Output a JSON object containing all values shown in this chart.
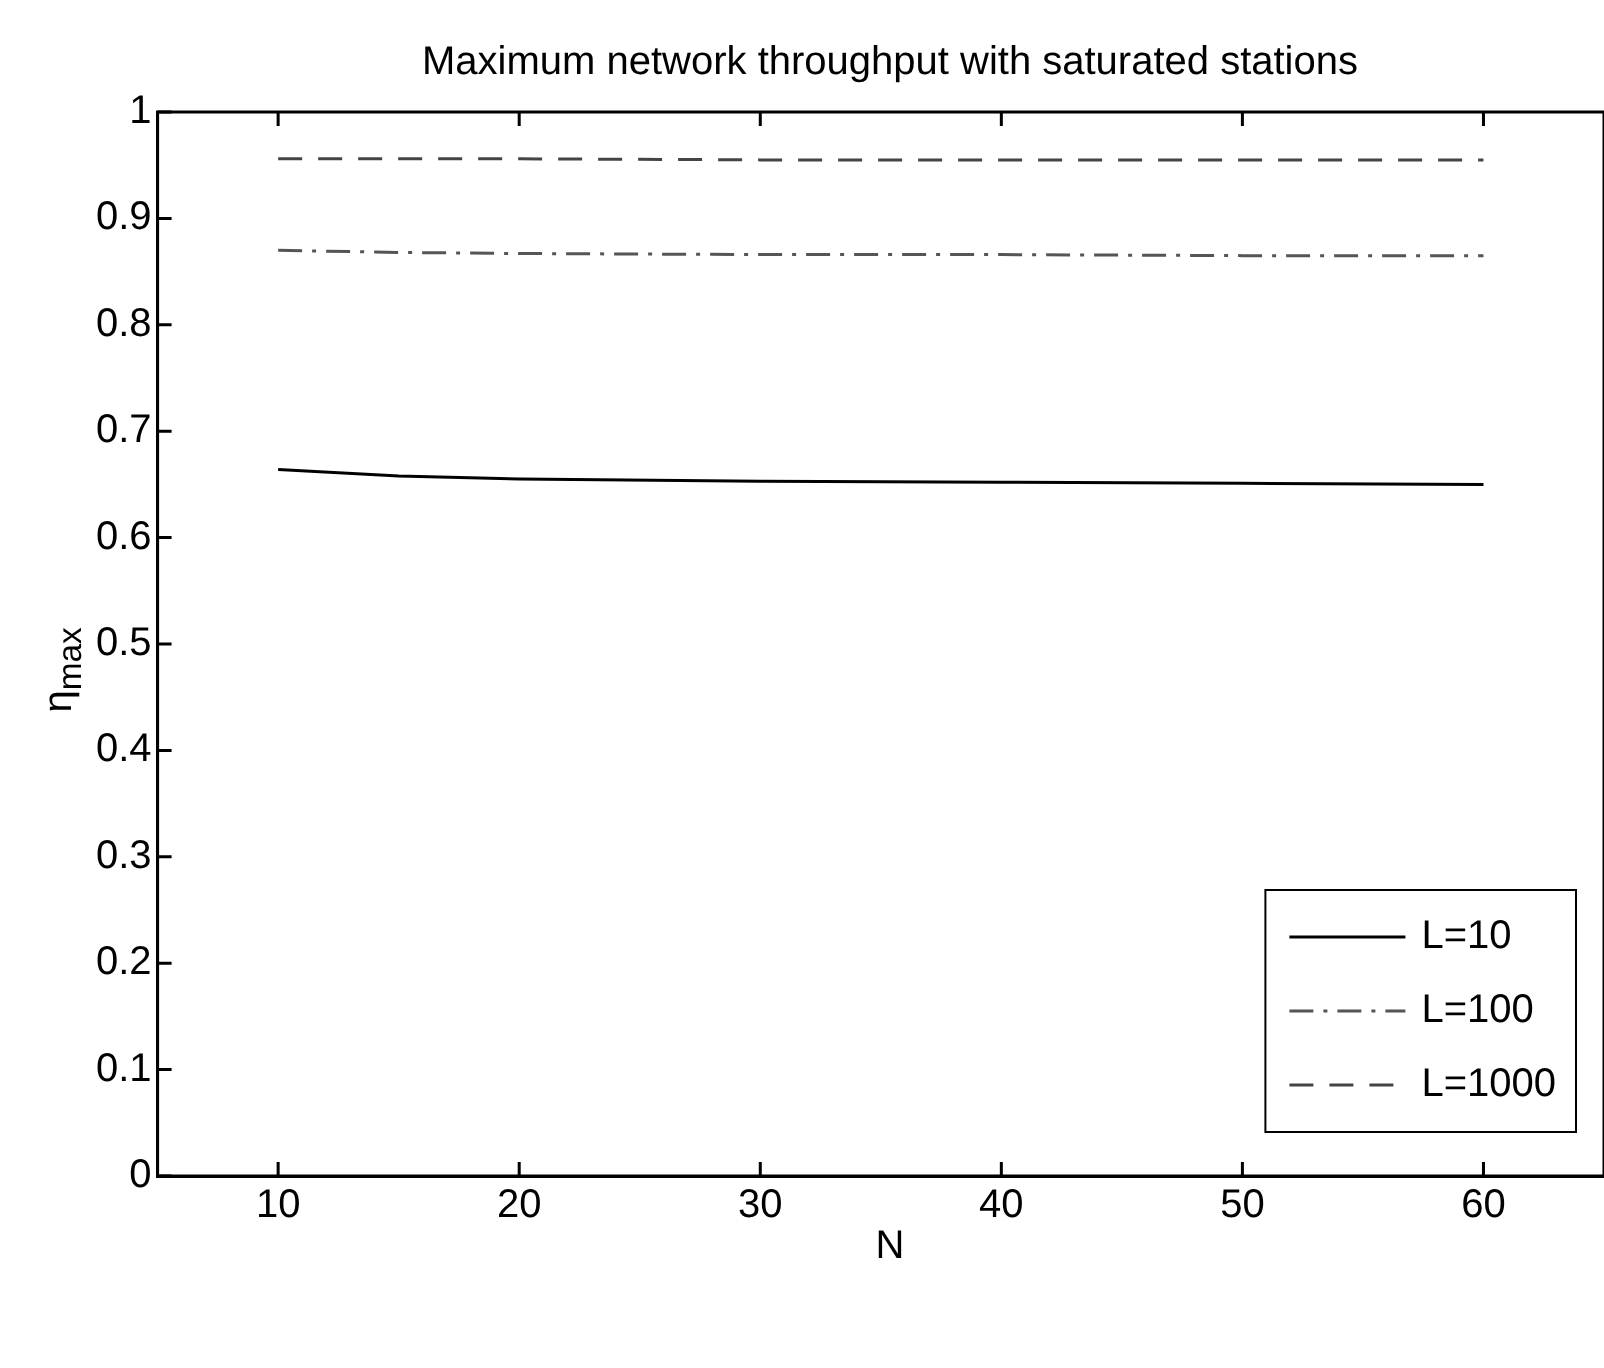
{
  "chart_data": {
    "type": "line",
    "title": "Maximum network throughput with saturated stations",
    "xlabel": "N",
    "ylabel": "η$_{max}$",
    "x": [
      10,
      15,
      20,
      30,
      40,
      50,
      60
    ],
    "series": [
      {
        "name": "L=10",
        "color": "#000000",
        "line_style": "solid",
        "values": [
          0.664,
          0.658,
          0.655,
          0.653,
          0.652,
          0.651,
          0.65
        ]
      },
      {
        "name": "L=100",
        "color": "#555555",
        "line_style": "dashdot",
        "values": [
          0.87,
          0.868,
          0.867,
          0.866,
          0.866,
          0.865,
          0.865
        ]
      },
      {
        "name": "L=1000",
        "color": "#444444",
        "line_style": "dashed",
        "values": [
          0.956,
          0.956,
          0.956,
          0.955,
          0.955,
          0.955,
          0.955
        ]
      }
    ],
    "xlim": [
      5,
      65
    ],
    "xticks": [
      10,
      20,
      30,
      40,
      50,
      60
    ],
    "ylim": [
      0,
      1
    ],
    "yticks": [
      0,
      0.1,
      0.2,
      0.3,
      0.4,
      0.5,
      0.6,
      0.7,
      0.8,
      0.9,
      1
    ],
    "grid": false,
    "legend": "bottom right",
    "marker": "none"
  }
}
